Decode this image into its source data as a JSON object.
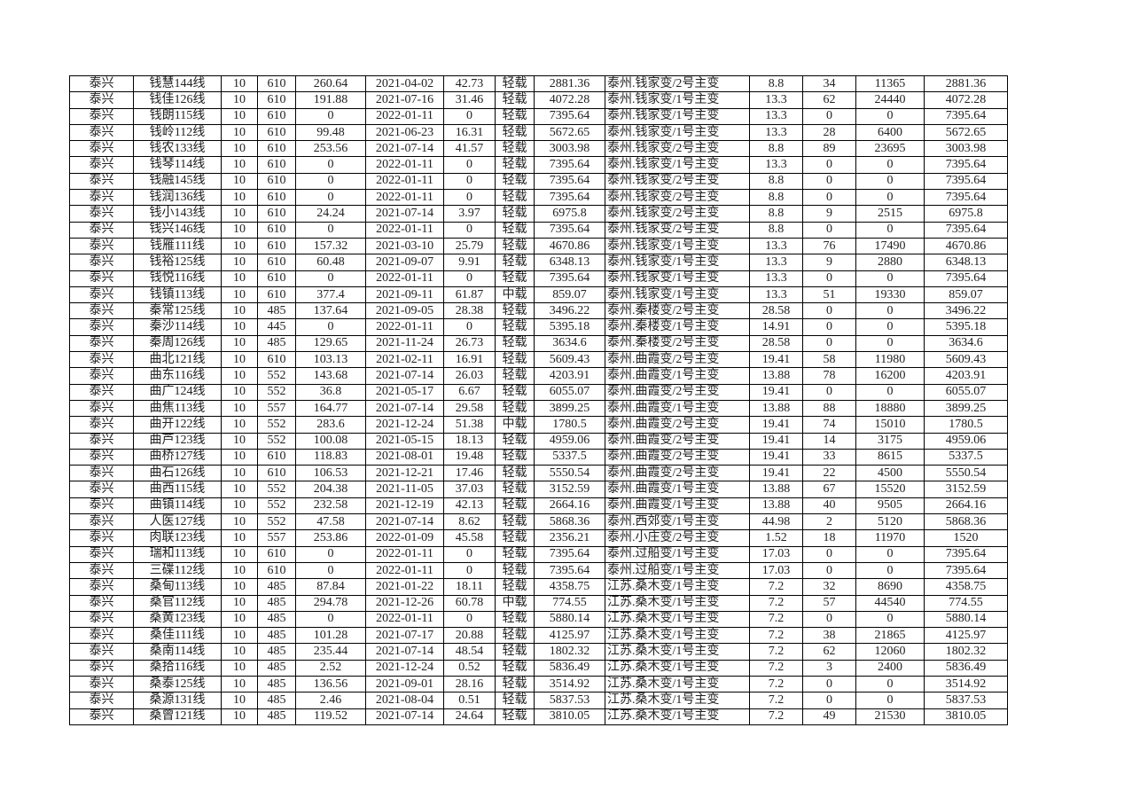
{
  "table": {
    "rows": [
      [
        "泰兴",
        "钱慧144线",
        "10",
        "610",
        "260.64",
        "2021-04-02",
        "42.73",
        "轻载",
        "2881.36",
        "泰州.钱家变/2号主变",
        "8.8",
        "34",
        "11365",
        "2881.36"
      ],
      [
        "泰兴",
        "钱佳126线",
        "10",
        "610",
        "191.88",
        "2021-07-16",
        "31.46",
        "轻载",
        "4072.28",
        "泰州.钱家变/1号主变",
        "13.3",
        "62",
        "24440",
        "4072.28"
      ],
      [
        "泰兴",
        "钱朗115线",
        "10",
        "610",
        "0",
        "2022-01-11",
        "0",
        "轻载",
        "7395.64",
        "泰州.钱家变/1号主变",
        "13.3",
        "0",
        "0",
        "7395.64"
      ],
      [
        "泰兴",
        "钱岭112线",
        "10",
        "610",
        "99.48",
        "2021-06-23",
        "16.31",
        "轻载",
        "5672.65",
        "泰州.钱家变/1号主变",
        "13.3",
        "28",
        "6400",
        "5672.65"
      ],
      [
        "泰兴",
        "钱农133线",
        "10",
        "610",
        "253.56",
        "2021-07-14",
        "41.57",
        "轻载",
        "3003.98",
        "泰州.钱家变/2号主变",
        "8.8",
        "89",
        "23695",
        "3003.98"
      ],
      [
        "泰兴",
        "钱琴114线",
        "10",
        "610",
        "0",
        "2022-01-11",
        "0",
        "轻载",
        "7395.64",
        "泰州.钱家变/1号主变",
        "13.3",
        "0",
        "0",
        "7395.64"
      ],
      [
        "泰兴",
        "钱融145线",
        "10",
        "610",
        "0",
        "2022-01-11",
        "0",
        "轻载",
        "7395.64",
        "泰州.钱家变/2号主变",
        "8.8",
        "0",
        "0",
        "7395.64"
      ],
      [
        "泰兴",
        "钱润136线",
        "10",
        "610",
        "0",
        "2022-01-11",
        "0",
        "轻载",
        "7395.64",
        "泰州.钱家变/2号主变",
        "8.8",
        "0",
        "0",
        "7395.64"
      ],
      [
        "泰兴",
        "钱小143线",
        "10",
        "610",
        "24.24",
        "2021-07-14",
        "3.97",
        "轻载",
        "6975.8",
        "泰州.钱家变/2号主变",
        "8.8",
        "9",
        "2515",
        "6975.8"
      ],
      [
        "泰兴",
        "钱兴146线",
        "10",
        "610",
        "0",
        "2022-01-11",
        "0",
        "轻载",
        "7395.64",
        "泰州.钱家变/2号主变",
        "8.8",
        "0",
        "0",
        "7395.64"
      ],
      [
        "泰兴",
        "钱雁111线",
        "10",
        "610",
        "157.32",
        "2021-03-10",
        "25.79",
        "轻载",
        "4670.86",
        "泰州.钱家变/1号主变",
        "13.3",
        "76",
        "17490",
        "4670.86"
      ],
      [
        "泰兴",
        "钱裕125线",
        "10",
        "610",
        "60.48",
        "2021-09-07",
        "9.91",
        "轻载",
        "6348.13",
        "泰州.钱家变/1号主变",
        "13.3",
        "9",
        "2880",
        "6348.13"
      ],
      [
        "泰兴",
        "钱悦116线",
        "10",
        "610",
        "0",
        "2022-01-11",
        "0",
        "轻载",
        "7395.64",
        "泰州.钱家变/1号主变",
        "13.3",
        "0",
        "0",
        "7395.64"
      ],
      [
        "泰兴",
        "钱镇113线",
        "10",
        "610",
        "377.4",
        "2021-09-11",
        "61.87",
        "中载",
        "859.07",
        "泰州.钱家变/1号主变",
        "13.3",
        "51",
        "19330",
        "859.07"
      ],
      [
        "泰兴",
        "秦常125线",
        "10",
        "485",
        "137.64",
        "2021-09-05",
        "28.38",
        "轻载",
        "3496.22",
        "泰州.秦楼变/2号主变",
        "28.58",
        "0",
        "0",
        "3496.22"
      ],
      [
        "泰兴",
        "秦沙114线",
        "10",
        "445",
        "0",
        "2022-01-11",
        "0",
        "轻载",
        "5395.18",
        "泰州.秦楼变/1号主变",
        "14.91",
        "0",
        "0",
        "5395.18"
      ],
      [
        "泰兴",
        "秦周126线",
        "10",
        "485",
        "129.65",
        "2021-11-24",
        "26.73",
        "轻载",
        "3634.6",
        "泰州.秦楼变/2号主变",
        "28.58",
        "0",
        "0",
        "3634.6"
      ],
      [
        "泰兴",
        "曲北121线",
        "10",
        "610",
        "103.13",
        "2021-02-11",
        "16.91",
        "轻载",
        "5609.43",
        "泰州.曲霞变/2号主变",
        "19.41",
        "58",
        "11980",
        "5609.43"
      ],
      [
        "泰兴",
        "曲东116线",
        "10",
        "552",
        "143.68",
        "2021-07-14",
        "26.03",
        "轻载",
        "4203.91",
        "泰州.曲霞变/1号主变",
        "13.88",
        "78",
        "16200",
        "4203.91"
      ],
      [
        "泰兴",
        "曲广124线",
        "10",
        "552",
        "36.8",
        "2021-05-17",
        "6.67",
        "轻载",
        "6055.07",
        "泰州.曲霞变/2号主变",
        "19.41",
        "0",
        "0",
        "6055.07"
      ],
      [
        "泰兴",
        "曲焦113线",
        "10",
        "557",
        "164.77",
        "2021-07-14",
        "29.58",
        "轻载",
        "3899.25",
        "泰州.曲霞变/1号主变",
        "13.88",
        "88",
        "18880",
        "3899.25"
      ],
      [
        "泰兴",
        "曲开122线",
        "10",
        "552",
        "283.6",
        "2021-12-24",
        "51.38",
        "中载",
        "1780.5",
        "泰州.曲霞变/2号主变",
        "19.41",
        "74",
        "15010",
        "1780.5"
      ],
      [
        "泰兴",
        "曲芦123线",
        "10",
        "552",
        "100.08",
        "2021-05-15",
        "18.13",
        "轻载",
        "4959.06",
        "泰州.曲霞变/2号主变",
        "19.41",
        "14",
        "3175",
        "4959.06"
      ],
      [
        "泰兴",
        "曲桥127线",
        "10",
        "610",
        "118.83",
        "2021-08-01",
        "19.48",
        "轻载",
        "5337.5",
        "泰州.曲霞变/2号主变",
        "19.41",
        "33",
        "8615",
        "5337.5"
      ],
      [
        "泰兴",
        "曲石126线",
        "10",
        "610",
        "106.53",
        "2021-12-21",
        "17.46",
        "轻载",
        "5550.54",
        "泰州.曲霞变/2号主变",
        "19.41",
        "22",
        "4500",
        "5550.54"
      ],
      [
        "泰兴",
        "曲西115线",
        "10",
        "552",
        "204.38",
        "2021-11-05",
        "37.03",
        "轻载",
        "3152.59",
        "泰州.曲霞变/1号主变",
        "13.88",
        "67",
        "15520",
        "3152.59"
      ],
      [
        "泰兴",
        "曲镇114线",
        "10",
        "552",
        "232.58",
        "2021-12-19",
        "42.13",
        "轻载",
        "2664.16",
        "泰州.曲霞变/1号主变",
        "13.88",
        "40",
        "9505",
        "2664.16"
      ],
      [
        "泰兴",
        "人医127线",
        "10",
        "552",
        "47.58",
        "2021-07-14",
        "8.62",
        "轻载",
        "5868.36",
        "泰州.西郊变/1号主变",
        "44.98",
        "2",
        "5120",
        "5868.36"
      ],
      [
        "泰兴",
        "肉联123线",
        "10",
        "557",
        "253.86",
        "2022-01-09",
        "45.58",
        "轻载",
        "2356.21",
        "泰州.小庄变/2号主变",
        "1.52",
        "18",
        "11970",
        "1520"
      ],
      [
        "泰兴",
        "瑞和113线",
        "10",
        "610",
        "0",
        "2022-01-11",
        "0",
        "轻载",
        "7395.64",
        "泰州.过船变/1号主变",
        "17.03",
        "0",
        "0",
        "7395.64"
      ],
      [
        "泰兴",
        "三碟112线",
        "10",
        "610",
        "0",
        "2022-01-11",
        "0",
        "轻载",
        "7395.64",
        "泰州.过船变/1号主变",
        "17.03",
        "0",
        "0",
        "7395.64"
      ],
      [
        "泰兴",
        "桑甸113线",
        "10",
        "485",
        "87.84",
        "2021-01-22",
        "18.11",
        "轻载",
        "4358.75",
        "江苏.桑木变/1号主变",
        "7.2",
        "32",
        "8690",
        "4358.75"
      ],
      [
        "泰兴",
        "桑官112线",
        "10",
        "485",
        "294.78",
        "2021-12-26",
        "60.78",
        "中载",
        "774.55",
        "江苏.桑木变/1号主变",
        "7.2",
        "57",
        "44540",
        "774.55"
      ],
      [
        "泰兴",
        "桑黄123线",
        "10",
        "485",
        "0",
        "2022-01-11",
        "0",
        "轻载",
        "5880.14",
        "江苏.桑木变/1号主变",
        "7.2",
        "0",
        "0",
        "5880.14"
      ],
      [
        "泰兴",
        "桑佳111线",
        "10",
        "485",
        "101.28",
        "2021-07-17",
        "20.88",
        "轻载",
        "4125.97",
        "江苏.桑木变/1号主变",
        "7.2",
        "38",
        "21865",
        "4125.97"
      ],
      [
        "泰兴",
        "桑南114线",
        "10",
        "485",
        "235.44",
        "2021-07-14",
        "48.54",
        "轻载",
        "1802.32",
        "江苏.桑木变/1号主变",
        "7.2",
        "62",
        "12060",
        "1802.32"
      ],
      [
        "泰兴",
        "桑拾116线",
        "10",
        "485",
        "2.52",
        "2021-12-24",
        "0.52",
        "轻载",
        "5836.49",
        "江苏.桑木变/1号主变",
        "7.2",
        "3",
        "2400",
        "5836.49"
      ],
      [
        "泰兴",
        "桑泰125线",
        "10",
        "485",
        "136.56",
        "2021-09-01",
        "28.16",
        "轻载",
        "3514.92",
        "江苏.桑木变/1号主变",
        "7.2",
        "0",
        "0",
        "3514.92"
      ],
      [
        "泰兴",
        "桑源131线",
        "10",
        "485",
        "2.46",
        "2021-08-04",
        "0.51",
        "轻载",
        "5837.53",
        "江苏.桑木变/1号主变",
        "7.2",
        "0",
        "0",
        "5837.53"
      ],
      [
        "泰兴",
        "桑曾121线",
        "10",
        "485",
        "119.52",
        "2021-07-14",
        "24.64",
        "轻载",
        "3810.05",
        "江苏.桑木变/1号主变",
        "7.2",
        "49",
        "21530",
        "3810.05"
      ]
    ]
  }
}
